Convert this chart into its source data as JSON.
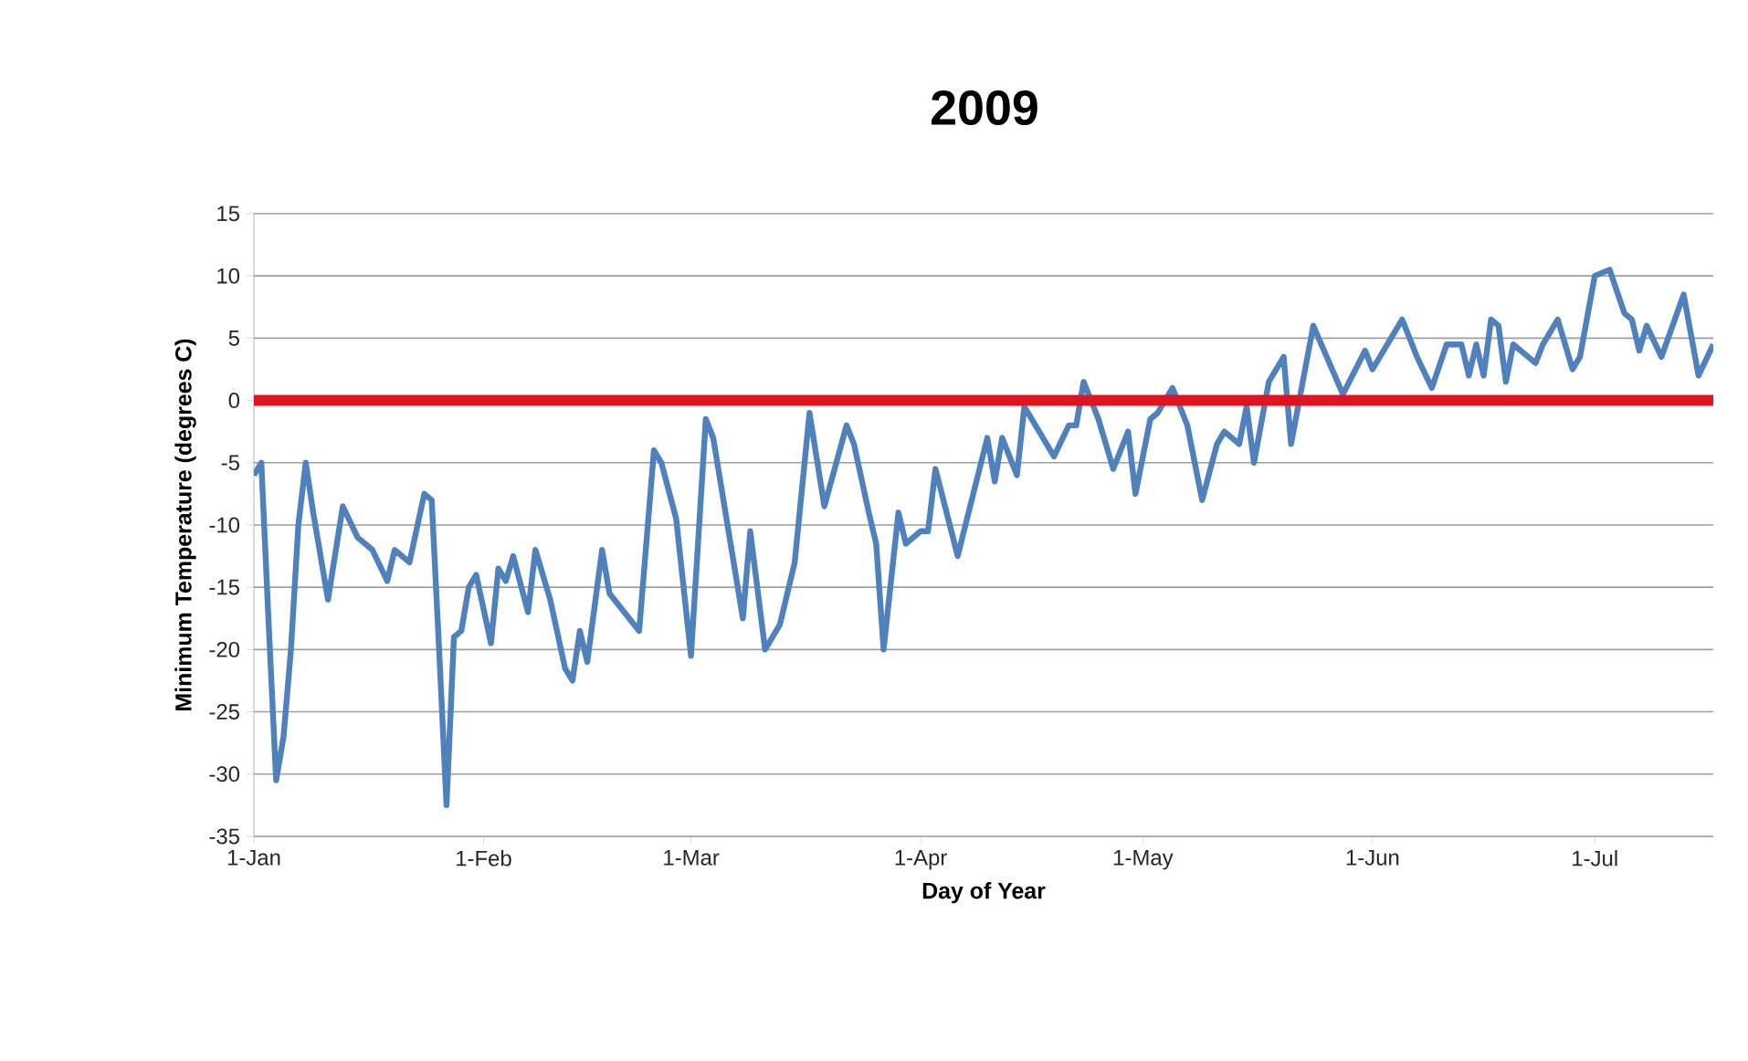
{
  "chart_data": {
    "type": "line",
    "title": "2009",
    "xlabel": "Day of Year",
    "ylabel": "Minimum Temperature (degrees C)",
    "xlim": [
      "2009-01-01",
      "2009-07-17"
    ],
    "xticks": [
      {
        "value": "2009-01-01",
        "label": "1-Jan"
      },
      {
        "value": "2009-02-01",
        "label": "1-Feb"
      },
      {
        "value": "2009-03-01",
        "label": "1-Mar"
      },
      {
        "value": "2009-04-01",
        "label": "1-Apr"
      },
      {
        "value": "2009-05-01",
        "label": "1-May"
      },
      {
        "value": "2009-06-01",
        "label": "1-Jun"
      },
      {
        "value": "2009-07-01",
        "label": "1-Jul"
      }
    ],
    "ylim": [
      -35,
      15
    ],
    "yticks": [
      -35,
      -30,
      -25,
      -20,
      -15,
      -10,
      -5,
      0,
      5,
      10,
      15
    ],
    "grid": "y",
    "marker": "none",
    "line_style": "solid",
    "x": [
      "2009-01-01",
      "2009-01-02",
      "2009-01-03",
      "2009-01-04",
      "2009-01-05",
      "2009-01-06",
      "2009-01-07",
      "2009-01-08",
      "2009-01-09",
      "2009-01-11",
      "2009-01-13",
      "2009-01-15",
      "2009-01-17",
      "2009-01-19",
      "2009-01-20",
      "2009-01-22",
      "2009-01-24",
      "2009-01-25",
      "2009-01-26",
      "2009-01-27",
      "2009-01-28",
      "2009-01-29",
      "2009-01-30",
      "2009-01-31",
      "2009-02-02",
      "2009-02-03",
      "2009-02-04",
      "2009-02-05",
      "2009-02-07",
      "2009-02-08",
      "2009-02-10",
      "2009-02-12",
      "2009-02-13",
      "2009-02-14",
      "2009-02-15",
      "2009-02-17",
      "2009-02-18",
      "2009-02-22",
      "2009-02-24",
      "2009-02-25",
      "2009-02-27",
      "2009-03-01",
      "2009-03-03",
      "2009-03-04",
      "2009-03-08",
      "2009-03-09",
      "2009-03-11",
      "2009-03-13",
      "2009-03-15",
      "2009-03-17",
      "2009-03-19",
      "2009-03-22",
      "2009-03-23",
      "2009-03-25",
      "2009-03-26",
      "2009-03-27",
      "2009-03-29",
      "2009-03-30",
      "2009-04-01",
      "2009-04-02",
      "2009-04-03",
      "2009-04-06",
      "2009-04-10",
      "2009-04-11",
      "2009-04-12",
      "2009-04-14",
      "2009-04-15",
      "2009-04-17",
      "2009-04-19",
      "2009-04-21",
      "2009-04-22",
      "2009-04-23",
      "2009-04-25",
      "2009-04-27",
      "2009-04-29",
      "2009-04-30",
      "2009-05-02",
      "2009-05-03",
      "2009-05-05",
      "2009-05-07",
      "2009-05-09",
      "2009-05-11",
      "2009-05-12",
      "2009-05-14",
      "2009-05-15",
      "2009-05-16",
      "2009-05-18",
      "2009-05-20",
      "2009-05-21",
      "2009-05-24",
      "2009-05-28",
      "2009-05-31",
      "2009-06-01",
      "2009-06-05",
      "2009-06-07",
      "2009-06-09",
      "2009-06-11",
      "2009-06-13",
      "2009-06-14",
      "2009-06-15",
      "2009-06-16",
      "2009-06-17",
      "2009-06-18",
      "2009-06-19",
      "2009-06-20",
      "2009-06-23",
      "2009-06-24",
      "2009-06-26",
      "2009-06-28",
      "2009-06-29",
      "2009-07-01",
      "2009-07-03",
      "2009-07-05",
      "2009-07-06",
      "2009-07-07",
      "2009-07-08",
      "2009-07-10",
      "2009-07-13",
      "2009-07-15",
      "2009-07-17"
    ],
    "series": [
      {
        "color": "#4f81bd",
        "values": [
          -6,
          -5,
          -18,
          -30.5,
          -27,
          -20,
          -10,
          -5,
          -9,
          -16,
          -8.5,
          -11,
          -12,
          -14.5,
          -12,
          -13,
          -7.5,
          -8,
          -20,
          -32.5,
          -19,
          -18.5,
          -15,
          -14,
          -19.5,
          -13.5,
          -14.5,
          -12.5,
          -17,
          -12,
          -16,
          -21.5,
          -22.5,
          -18.5,
          -21,
          -12,
          -15.5,
          -18.5,
          -4,
          -5,
          -9.5,
          -20.5,
          -1.5,
          -3,
          -17.5,
          -10.5,
          -20,
          -18,
          -13,
          -1,
          -8.5,
          -2,
          -3.5,
          -9,
          -11.5,
          -20,
          -9,
          -11.5,
          -10.5,
          -10.5,
          -5.5,
          -12.5,
          -3,
          -6.5,
          -3,
          -6,
          -0.5,
          -2.5,
          -4.5,
          -2,
          -2,
          1.5,
          -1.5,
          -5.5,
          -2.5,
          -7.5,
          -1.5,
          -1,
          1,
          -2,
          -8,
          -3.5,
          -2.5,
          -3.5,
          -0.5,
          -5,
          1.5,
          3.5,
          -3.5,
          6,
          0.5,
          4,
          2.5,
          6.5,
          3.5,
          1,
          4.5,
          4.5,
          2,
          4.5,
          2,
          6.5,
          6,
          1.5,
          4.5,
          3,
          4.5,
          6.5,
          2.5,
          3.5,
          10,
          10.5,
          7,
          6.5,
          4,
          6,
          3.5,
          8.5,
          2,
          4.5
        ]
      }
    ],
    "ref_lines": [
      {
        "axis": "y",
        "value": 0,
        "color": "#e0141e",
        "line_style": "solid"
      }
    ]
  }
}
